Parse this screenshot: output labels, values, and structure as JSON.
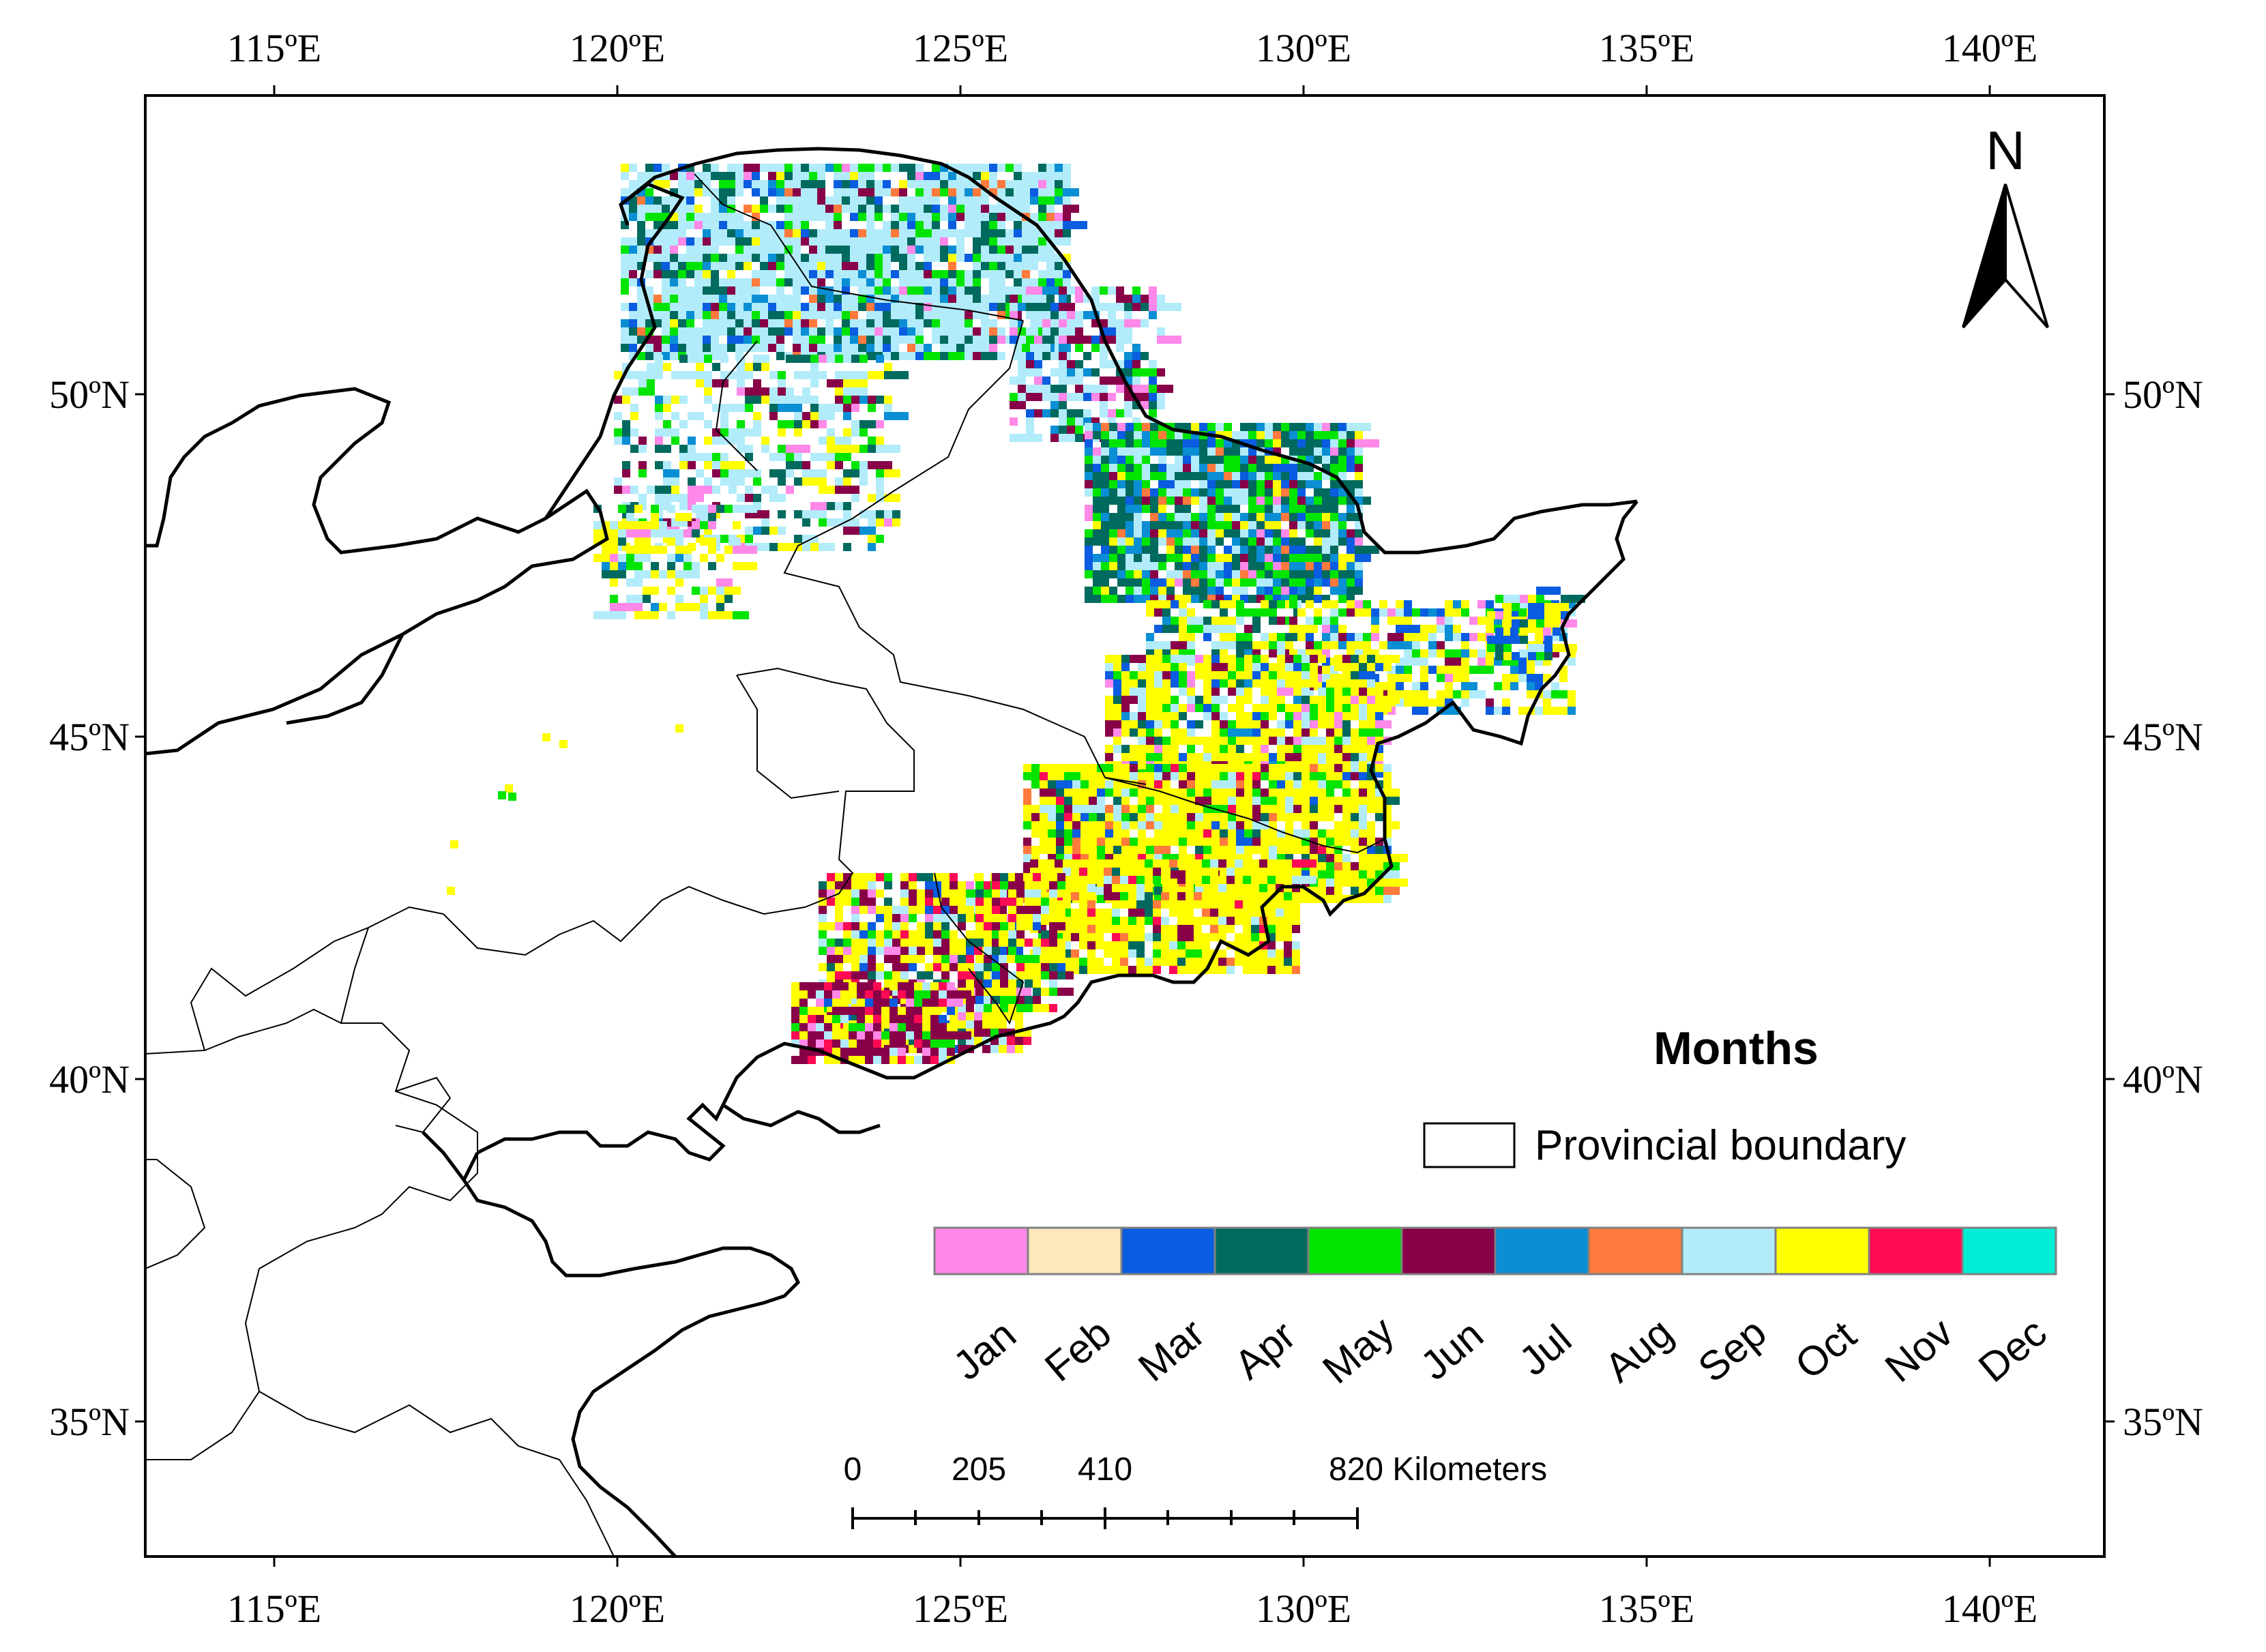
{
  "map": {
    "graticule": {
      "top_lon_labels": [
        "115ºE",
        "120ºE",
        "125ºE",
        "130ºE",
        "135ºE",
        "140ºE"
      ],
      "bottom_lon_labels": [
        "115ºE",
        "120ºE",
        "125ºE",
        "130ºE",
        "135ºE",
        "140ºE"
      ],
      "left_lat_labels": [
        "50ºN",
        "45ºN",
        "40ºN",
        "35ºN"
      ],
      "right_lat_labels": [
        "50ºN",
        "45ºN",
        "40ºN",
        "35ºN"
      ]
    },
    "north_arrow": {
      "label": "N"
    },
    "legend": {
      "title": "Months",
      "boundary_label": "Provincial boundary",
      "months": [
        {
          "label": "Jan",
          "color": "#ff88e8"
        },
        {
          "label": "Feb",
          "color": "#ffe8bc"
        },
        {
          "label": "Mar",
          "color": "#0a5ce0"
        },
        {
          "label": "Apr",
          "color": "#006a5e"
        },
        {
          "label": "May",
          "color": "#00e400"
        },
        {
          "label": "Jun",
          "color": "#880048"
        },
        {
          "label": "Jul",
          "color": "#0a8ed4"
        },
        {
          "label": "Aug",
          "color": "#ff7a3c"
        },
        {
          "label": "Sep",
          "color": "#b2ecfa"
        },
        {
          "label": "Oct",
          "color": "#ffff00"
        },
        {
          "label": "Nov",
          "color": "#ff0a54"
        },
        {
          "label": "Dec",
          "color": "#00eed6"
        }
      ]
    },
    "scale_bar": {
      "labels": [
        "0",
        "205",
        "410",
        "820 Kilometers"
      ]
    }
  }
}
